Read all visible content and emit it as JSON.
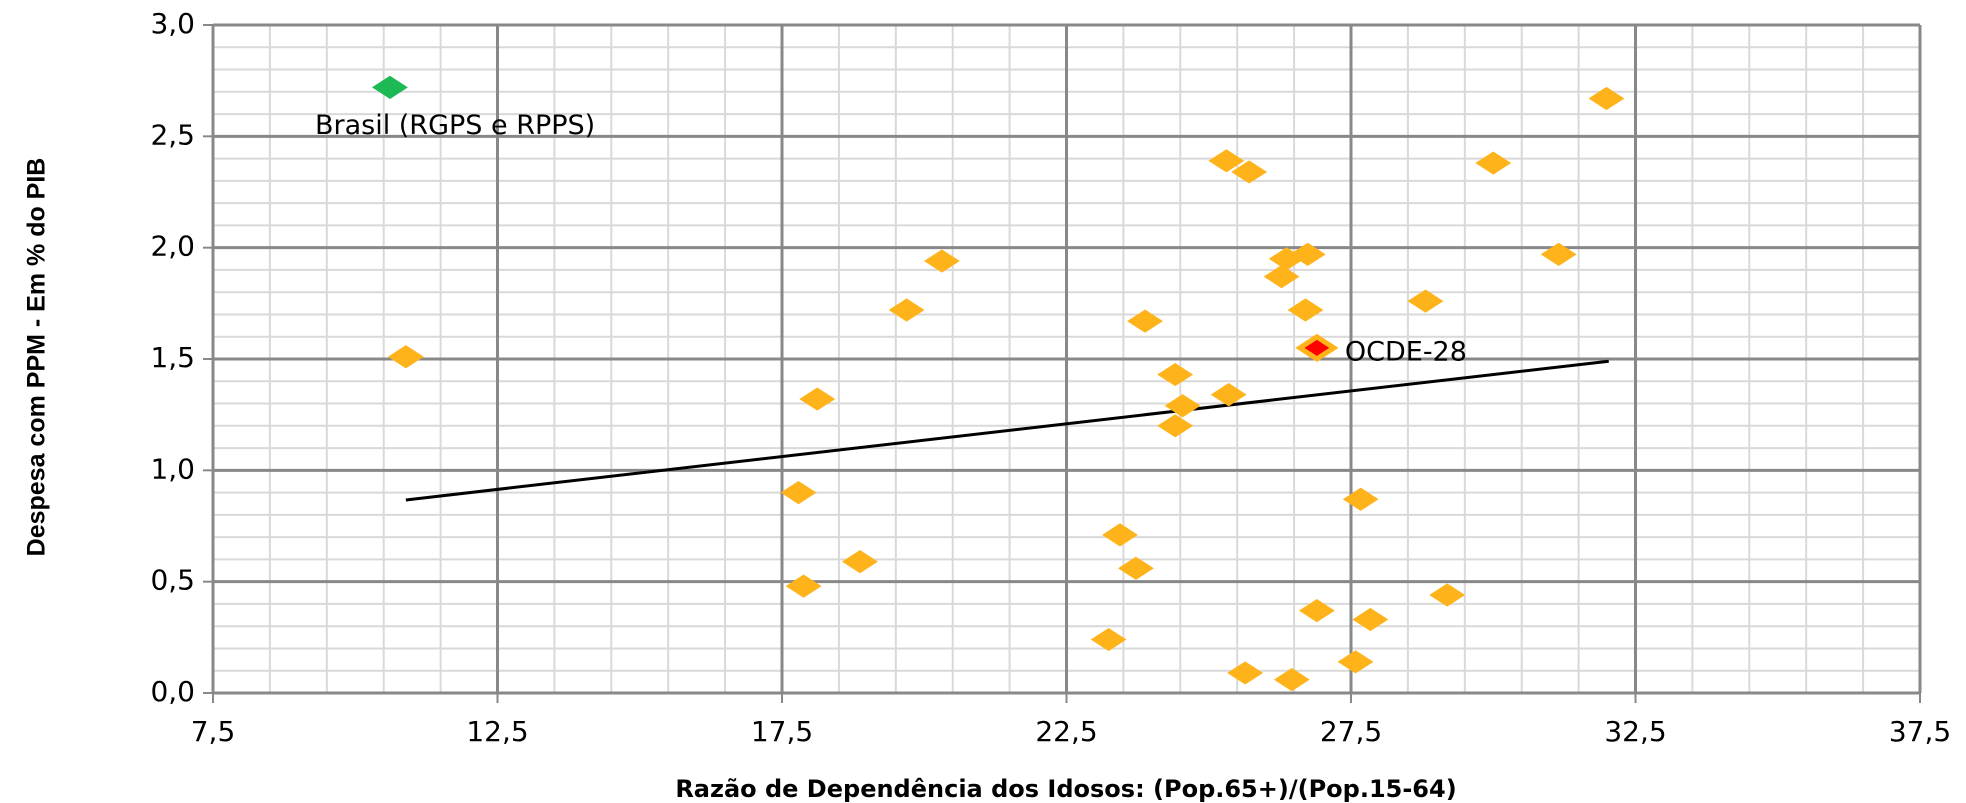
{
  "chart_data": {
    "type": "scatter",
    "xlabel": "Razão de Dependência dos Idosos: (Pop.65+)/(Pop.15-64)",
    "ylabel": "Despesa com PPM - Em % do PIB",
    "xlim": [
      7.5,
      37.5
    ],
    "ylim": [
      0,
      3
    ],
    "xticks": [
      {
        "value": 7.5,
        "label": "7,5"
      },
      {
        "value": 12.5,
        "label": "12,5"
      },
      {
        "value": 17.5,
        "label": "17,5"
      },
      {
        "value": 22.5,
        "label": "22,5"
      },
      {
        "value": 27.5,
        "label": "27,5"
      },
      {
        "value": 32.5,
        "label": "32,5"
      },
      {
        "value": 37.5,
        "label": "37,5"
      }
    ],
    "yticks": [
      {
        "value": 0,
        "label": "0,0"
      },
      {
        "value": 0.5,
        "label": "0,5"
      },
      {
        "value": 1,
        "label": "1,0"
      },
      {
        "value": 1.5,
        "label": "1,5"
      },
      {
        "value": 2,
        "label": "2,0"
      },
      {
        "value": 2.5,
        "label": "2,5"
      },
      {
        "value": 3,
        "label": "3,0"
      }
    ],
    "grid": true,
    "series": [
      {
        "color": "#ffb31a",
        "x": [
          10.89,
          17.79,
          17.88,
          18.12,
          18.87,
          19.69,
          20.31,
          23.24,
          23.44,
          23.72,
          23.88,
          24.41,
          24.41,
          24.54,
          25.31,
          25.35,
          25.71,
          25.64,
          26.28,
          26.37,
          26.74,
          26.46,
          26.7,
          26.9,
          27.58,
          27.67,
          27.84,
          28.81,
          29.19,
          30.0,
          31.15,
          31.99
        ],
        "y": [
          1.51,
          0.9,
          0.48,
          1.32,
          0.59,
          1.72,
          1.94,
          0.24,
          0.71,
          0.56,
          1.67,
          1.43,
          1.2,
          1.29,
          2.39,
          1.34,
          2.34,
          0.09,
          1.87,
          1.95,
          1.97,
          0.06,
          1.72,
          0.37,
          0.14,
          0.87,
          0.33,
          1.76,
          0.44,
          2.38,
          1.97,
          2.67
        ]
      },
      {
        "color": "#1db954",
        "label": "Brasil (RGPS e RPPS)",
        "x": [
          10.61
        ],
        "y": [
          2.72
        ]
      },
      {
        "color": "#ff0000",
        "label": "OCDE-28",
        "x": [
          26.9
        ],
        "y": [
          1.55
        ]
      }
    ],
    "trendline": {
      "color": "#000000",
      "x": [
        10.89,
        32.03
      ],
      "y": [
        0.867,
        1.49
      ]
    }
  }
}
